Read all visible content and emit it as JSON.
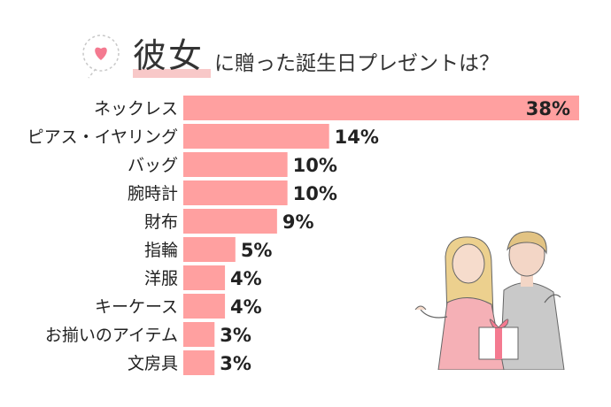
{
  "title": {
    "emphasis": "彼女",
    "rest": "に贈った誕生日プレゼントは？"
  },
  "colors": {
    "bar": "#ffa0a0",
    "text": "#222222",
    "accent": "#f47a90"
  },
  "chart_data": {
    "type": "bar",
    "orientation": "horizontal",
    "categories": [
      "ネックレス",
      "ピアス・イヤリング",
      "バッグ",
      "腕時計",
      "財布",
      "指輪",
      "洋服",
      "キーケース",
      "お揃いのアイテム",
      "文房具"
    ],
    "values": [
      38,
      14,
      10,
      10,
      9,
      5,
      4,
      4,
      3,
      3
    ],
    "value_labels": [
      "38%",
      "14%",
      "10%",
      "10%",
      "9%",
      "5%",
      "4%",
      "4%",
      "3%",
      "3%"
    ],
    "xlabel": "",
    "ylabel": "",
    "xlim": [
      0,
      38
    ],
    "grid": false,
    "legend": "none"
  }
}
